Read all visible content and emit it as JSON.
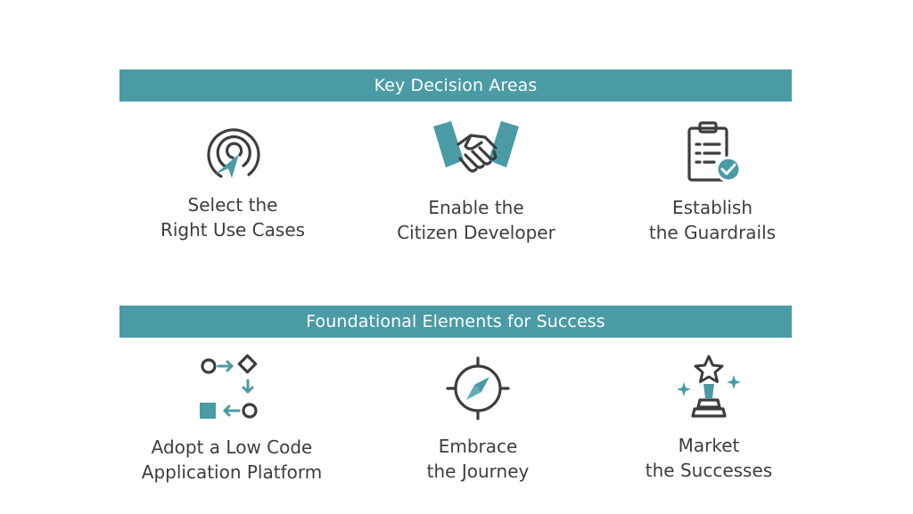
{
  "colors": {
    "accent": "#4a9ba5",
    "icon_dark": "#3d3d3d",
    "text": "#3d3d3d",
    "background": "#ffffff"
  },
  "sections": [
    {
      "title": "Key Decision Areas",
      "items": [
        {
          "icon": "target-cursor-icon",
          "line1": "Select the",
          "line2": "Right Use Cases"
        },
        {
          "icon": "handshake-icon",
          "line1": "Enable the",
          "line2": "Citizen Developer"
        },
        {
          "icon": "clipboard-check-icon",
          "line1": "Establish",
          "line2": "the Guardrails"
        }
      ]
    },
    {
      "title": "Foundational Elements for Success",
      "items": [
        {
          "icon": "process-flow-icon",
          "line1": "Adopt a Low Code",
          "line2": "Application Platform"
        },
        {
          "icon": "compass-icon",
          "line1": "Embrace",
          "line2": "the Journey"
        },
        {
          "icon": "trophy-star-icon",
          "line1": "Market",
          "line2": "the Successes"
        }
      ]
    }
  ]
}
